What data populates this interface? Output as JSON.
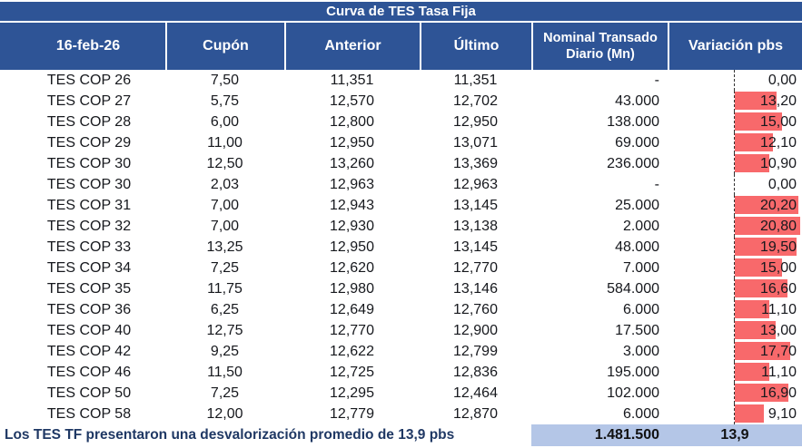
{
  "title": "Curva de TES Tasa Fija",
  "header": {
    "date": "16-feb-26",
    "cupon": "Cupón",
    "anterior": "Anterior",
    "ultimo": "Último",
    "nominal": "Nominal Transado Diario (Mn)",
    "variacion": "Variación pbs"
  },
  "rows": [
    {
      "name": "TES COP 26",
      "cupon": "7,50",
      "anterior": "11,351",
      "ultimo": "11,351",
      "nominal": "-",
      "variacion": "0,00",
      "variacion_value": 0
    },
    {
      "name": "TES COP 27",
      "cupon": "5,75",
      "anterior": "12,570",
      "ultimo": "12,702",
      "nominal": "43.000",
      "variacion": "13,20",
      "variacion_value": 13.2
    },
    {
      "name": "TES COP 28",
      "cupon": "6,00",
      "anterior": "12,800",
      "ultimo": "12,950",
      "nominal": "138.000",
      "variacion": "15,00",
      "variacion_value": 15.0
    },
    {
      "name": "TES COP 29",
      "cupon": "11,00",
      "anterior": "12,950",
      "ultimo": "13,071",
      "nominal": "69.000",
      "variacion": "12,10",
      "variacion_value": 12.1
    },
    {
      "name": "TES COP 30",
      "cupon": "12,50",
      "anterior": "13,260",
      "ultimo": "13,369",
      "nominal": "236.000",
      "variacion": "10,90",
      "variacion_value": 10.9
    },
    {
      "name": "TES COP 30",
      "cupon": "2,03",
      "anterior": "12,963",
      "ultimo": "12,963",
      "nominal": "-",
      "variacion": "0,00",
      "variacion_value": 0
    },
    {
      "name": "TES COP 31",
      "cupon": "7,00",
      "anterior": "12,943",
      "ultimo": "13,145",
      "nominal": "25.000",
      "variacion": "20,20",
      "variacion_value": 20.2
    },
    {
      "name": "TES COP 32",
      "cupon": "7,00",
      "anterior": "12,930",
      "ultimo": "13,138",
      "nominal": "2.000",
      "variacion": "20,80",
      "variacion_value": 20.8
    },
    {
      "name": "TES COP 33",
      "cupon": "13,25",
      "anterior": "12,950",
      "ultimo": "13,145",
      "nominal": "48.000",
      "variacion": "19,50",
      "variacion_value": 19.5
    },
    {
      "name": "TES COP 34",
      "cupon": "7,25",
      "anterior": "12,620",
      "ultimo": "12,770",
      "nominal": "7.000",
      "variacion": "15,00",
      "variacion_value": 15.0
    },
    {
      "name": "TES COP 35",
      "cupon": "11,75",
      "anterior": "12,980",
      "ultimo": "13,146",
      "nominal": "584.000",
      "variacion": "16,60",
      "variacion_value": 16.6
    },
    {
      "name": "TES COP 36",
      "cupon": "6,25",
      "anterior": "12,649",
      "ultimo": "12,760",
      "nominal": "6.000",
      "variacion": "11,10",
      "variacion_value": 11.1
    },
    {
      "name": "TES COP 40",
      "cupon": "12,75",
      "anterior": "12,770",
      "ultimo": "12,900",
      "nominal": "17.500",
      "variacion": "13,00",
      "variacion_value": 13.0
    },
    {
      "name": "TES COP 42",
      "cupon": "9,25",
      "anterior": "12,622",
      "ultimo": "12,799",
      "nominal": "3.000",
      "variacion": "17,70",
      "variacion_value": 17.7
    },
    {
      "name": "TES COP 46",
      "cupon": "11,50",
      "anterior": "12,725",
      "ultimo": "12,836",
      "nominal": "195.000",
      "variacion": "11,10",
      "variacion_value": 11.1
    },
    {
      "name": "TES COP 50",
      "cupon": "7,25",
      "anterior": "12,295",
      "ultimo": "12,464",
      "nominal": "102.000",
      "variacion": "16,90",
      "variacion_value": 16.9
    },
    {
      "name": "TES COP 58",
      "cupon": "12,00",
      "anterior": "12,779",
      "ultimo": "12,870",
      "nominal": "6.000",
      "variacion": "9,10",
      "variacion_value": 9.1
    }
  ],
  "footer": {
    "note": "Los TES TF presentaron una desvalorización promedio de 13,9 pbs",
    "nominal_total": "1.481.500",
    "variacion_promedio": "13,9"
  },
  "colors": {
    "header_blue": "#2E5496",
    "databar_red": "#F8696B",
    "footer_band_blue": "#B4C6E7",
    "footer_text_navy": "#1F3864"
  },
  "chart_data": {
    "type": "table",
    "title": "Curva de TES Tasa Fija",
    "date": "16-feb-26",
    "columns": [
      "16-feb-26",
      "Cupón",
      "Anterior",
      "Último",
      "Nominal Transado Diario (Mn)",
      "Variación pbs"
    ],
    "categories": [
      "TES COP 26",
      "TES COP 27",
      "TES COP 28",
      "TES COP 29",
      "TES COP 30",
      "TES COP 30",
      "TES COP 31",
      "TES COP 32",
      "TES COP 33",
      "TES COP 34",
      "TES COP 35",
      "TES COP 36",
      "TES COP 40",
      "TES COP 42",
      "TES COP 46",
      "TES COP 50",
      "TES COP 58"
    ],
    "series": [
      {
        "name": "Cupón",
        "values": [
          7.5,
          5.75,
          6.0,
          11.0,
          12.5,
          2.03,
          7.0,
          7.0,
          13.25,
          7.25,
          11.75,
          6.25,
          12.75,
          9.25,
          11.5,
          7.25,
          12.0
        ]
      },
      {
        "name": "Anterior",
        "values": [
          11.351,
          12.57,
          12.8,
          12.95,
          13.26,
          12.963,
          12.943,
          12.93,
          12.95,
          12.62,
          12.98,
          12.649,
          12.77,
          12.622,
          12.725,
          12.295,
          12.779
        ]
      },
      {
        "name": "Último",
        "values": [
          11.351,
          12.702,
          12.95,
          13.071,
          13.369,
          12.963,
          13.145,
          13.138,
          13.145,
          12.77,
          13.146,
          12.76,
          12.9,
          12.799,
          12.836,
          12.464,
          12.87
        ]
      },
      {
        "name": "Nominal Transado Diario (Mn)",
        "values": [
          null,
          43000,
          138000,
          69000,
          236000,
          null,
          25000,
          2000,
          48000,
          7000,
          584000,
          6000,
          17500,
          3000,
          195000,
          102000,
          6000
        ]
      },
      {
        "name": "Variación pbs",
        "values": [
          0,
          13.2,
          15.0,
          12.1,
          10.9,
          0,
          20.2,
          20.8,
          19.5,
          15.0,
          16.6,
          11.1,
          13.0,
          17.7,
          11.1,
          16.9,
          9.1
        ]
      }
    ],
    "databar": {
      "column": "Variación pbs",
      "color": "#F8696B",
      "range": [
        0,
        20.8
      ]
    },
    "totals": {
      "nominal_transado": 1481500,
      "variacion_promedio_pbs": 13.9
    },
    "note": "Los TES TF presentaron una desvalorización promedio de 13,9 pbs"
  }
}
